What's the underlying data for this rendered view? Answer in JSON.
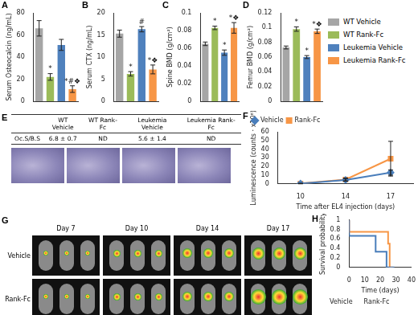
{
  "chart_data": [
    {
      "panel": "A",
      "type": "bar",
      "y_label": "Serum Osteocalcin (ng/mL)",
      "categories": [
        "WT Vehicle",
        "WT Rank-Fc",
        "Leukemia Vehicle",
        "Leukemia Rank-Fc"
      ],
      "values": [
        66,
        22,
        51,
        11
      ],
      "errors": [
        7,
        3,
        5,
        3
      ],
      "annotations": [
        null,
        "*",
        null,
        "*#❖"
      ],
      "colors": [
        "#a6a6a6",
        "#9bbb59",
        "#4f81bd",
        "#f79646"
      ],
      "ylim": [
        0,
        80
      ],
      "yticks": [
        0,
        20,
        40,
        60,
        80
      ],
      "grid": false,
      "tick_labels": "y",
      "legend": "right"
    },
    {
      "panel": "B",
      "type": "bar",
      "y_label": "Serum CTX (ng/mL)",
      "categories": [
        "WT Vehicle",
        "WT Rank-Fc",
        "Leukemia Vehicle",
        "Leukemia Rank-Fc"
      ],
      "values": [
        15.3,
        6.2,
        16.3,
        7.2
      ],
      "errors": [
        0.8,
        0.5,
        0.6,
        1.0
      ],
      "annotations": [
        null,
        "*",
        "#",
        "*❖"
      ],
      "colors": [
        "#a6a6a6",
        "#9bbb59",
        "#4f81bd",
        "#f79646"
      ],
      "ylim": [
        0,
        20
      ],
      "yticks": [
        0,
        5,
        10,
        15,
        20
      ],
      "grid": false,
      "tick_labels": "y"
    },
    {
      "panel": "C",
      "type": "bar",
      "y_label": "Spine BMD (g/cm²)",
      "categories": [
        "WT Vehicle",
        "WT Rank-Fc",
        "Leukemia Vehicle",
        "Leukemia Rank-Fc"
      ],
      "values": [
        0.065,
        0.083,
        0.055,
        0.083
      ],
      "errors": [
        0.002,
        0.002,
        0.003,
        0.006
      ],
      "annotations": [
        null,
        "*",
        "*",
        "*❖"
      ],
      "colors": [
        "#a6a6a6",
        "#9bbb59",
        "#4f81bd",
        "#f79646"
      ],
      "ylim": [
        0,
        0.1
      ],
      "yticks": [
        0,
        0.02,
        0.04,
        0.06,
        0.08,
        0.1
      ],
      "grid": false,
      "tick_labels": "y"
    },
    {
      "panel": "D",
      "type": "bar",
      "y_label": "Femur BMD (g/cm²)",
      "categories": [
        "WT Vehicle",
        "WT Rank-Fc",
        "Leukemia Vehicle",
        "Leukemia Rank-Fc"
      ],
      "values": [
        0.073,
        0.098,
        0.06,
        0.095
      ],
      "errors": [
        0.002,
        0.003,
        0.002,
        0.003
      ],
      "annotations": [
        null,
        "*",
        "*",
        "*❖"
      ],
      "colors": [
        "#a6a6a6",
        "#9bbb59",
        "#4f81bd",
        "#f79646"
      ],
      "ylim": [
        0,
        0.12
      ],
      "yticks": [
        0,
        0.02,
        0.04,
        0.06,
        0.08,
        0.1,
        0.12
      ],
      "grid": false,
      "tick_labels": "y"
    },
    {
      "panel": "F",
      "type": "line",
      "x_label": "Time after EL4 injection (days)",
      "y_label": "Luminescence (counts · x10⁶)",
      "categories": [
        "10",
        "14",
        "17"
      ],
      "series": [
        {
          "name": "Vehicle",
          "color": "#4a7ebb",
          "marker": "diamond",
          "values": [
            0.3,
            4.5,
            13
          ],
          "errors": [
            0.2,
            1.5,
            3
          ]
        },
        {
          "name": "Rank-Fc",
          "color": "#f79646",
          "marker": "square",
          "values": [
            0.4,
            5,
            29
          ],
          "errors": [
            0.2,
            1.5,
            20
          ]
        }
      ],
      "ylim": [
        0,
        60
      ],
      "yticks": [
        0,
        10,
        20,
        30,
        40,
        50,
        60
      ],
      "grid": false,
      "legend": "upper left"
    },
    {
      "panel": "H",
      "type": "line",
      "x_label": "Time (days)",
      "y_label": "Survival probability",
      "series": [
        {
          "name": "Vehicle",
          "color": "#4a7ebb",
          "line_style": "step",
          "x": [
            0,
            17,
            24,
            29
          ],
          "values": [
            1,
            0.667,
            0.333,
            0
          ]
        },
        {
          "name": "Rank-Fc",
          "color": "#f79646",
          "line_style": "step",
          "x": [
            0,
            25,
            26,
            28
          ],
          "values": [
            1,
            0.75,
            0.5,
            0
          ]
        }
      ],
      "xlim": [
        0,
        40
      ],
      "xticks": [
        0,
        10,
        20,
        30,
        40
      ],
      "ylim": [
        0,
        1
      ],
      "yticks": [
        0,
        0.2,
        0.4,
        0.6,
        0.8,
        1
      ],
      "grid": false,
      "legend": "lower left"
    }
  ],
  "table": {
    "panel": "E",
    "header": [
      "WT Vehicle",
      "WT Rank-Fc",
      "Leukemia Vehicle",
      "Leukemia Rank-Fc"
    ],
    "rows": [
      [
        "Oc.S/B.S",
        "6.8 ± 0.7",
        "ND",
        "5.6 ± 1.4",
        "ND"
      ]
    ]
  },
  "images": {
    "panel": "G",
    "columns": [
      "Day 7",
      "Day 10",
      "Day 14",
      "Day 17"
    ],
    "rows": [
      "Vehicle",
      "Rank-Fc"
    ]
  }
}
